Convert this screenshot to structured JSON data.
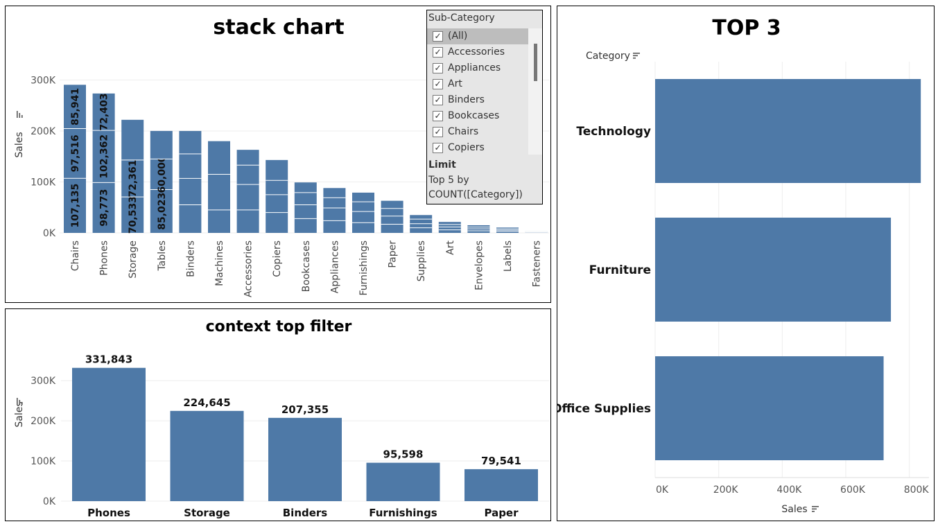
{
  "panels": {
    "stack": {
      "title": "stack chart"
    },
    "context": {
      "title": "context top filter"
    },
    "top3": {
      "title": "TOP 3"
    }
  },
  "filter": {
    "title": "Sub-Category",
    "items": [
      {
        "label": "(All)",
        "checked": true,
        "selected": true
      },
      {
        "label": "Accessories",
        "checked": true
      },
      {
        "label": "Appliances",
        "checked": true
      },
      {
        "label": "Art",
        "checked": true
      },
      {
        "label": "Binders",
        "checked": true
      },
      {
        "label": "Bookcases",
        "checked": true
      },
      {
        "label": "Chairs",
        "checked": true
      },
      {
        "label": "Copiers",
        "checked": true
      }
    ],
    "limit_title": "Limit",
    "limit_line1": "Top 5 by",
    "limit_line2": "COUNT([Category])"
  },
  "colors": {
    "bar": "#4e79a7",
    "segment_line": "#ffffff",
    "grid": "#eeeeee"
  },
  "chart_data": [
    {
      "type": "bar",
      "stacked": true,
      "title": "stack chart",
      "ylabel": "Sales",
      "ylim": [
        0,
        340000
      ],
      "yticks": [
        0,
        100000,
        200000,
        300000
      ],
      "ytick_labels": [
        "0K",
        "100K",
        "200K",
        "300K"
      ],
      "categories": [
        "Chairs",
        "Phones",
        "Storage",
        "Tables",
        "Binders",
        "Machines",
        "Accessories",
        "Copiers",
        "Bookcases",
        "Appliances",
        "Furnishings",
        "Paper",
        "Supplies",
        "Art",
        "Envelopes",
        "Labels",
        "Fasteners"
      ],
      "segments": [
        [
          107135,
          97516,
          85941
        ],
        [
          98773,
          102362,
          72403
        ],
        [
          70533,
          72361,
          79000
        ],
        [
          85023,
          60000,
          55000
        ],
        [
          55000,
          52000,
          48000,
          45000
        ],
        [
          45000,
          70000,
          65000
        ],
        [
          45000,
          50000,
          38000,
          30000
        ],
        [
          40000,
          35000,
          28000,
          40000
        ],
        [
          28000,
          27000,
          24000,
          20000
        ],
        [
          24000,
          25000,
          20000,
          19000
        ],
        [
          20000,
          22000,
          19000,
          18000
        ],
        [
          17000,
          16000,
          15000,
          15000
        ],
        [
          10000,
          8000,
          9000,
          8000
        ],
        [
          6000,
          5500,
          5000,
          5000
        ],
        [
          4000,
          4000,
          3500,
          3500
        ],
        [
          3000,
          2500,
          2500,
          2500
        ],
        [
          1000,
          1000,
          800,
          700
        ]
      ],
      "labeled_bars": [
        0,
        1,
        2,
        3
      ]
    },
    {
      "type": "bar",
      "title": "context top filter",
      "ylabel": "Sales",
      "ylim": [
        0,
        340000
      ],
      "yticks": [
        0,
        100000,
        200000,
        300000
      ],
      "ytick_labels": [
        "0K",
        "100K",
        "200K",
        "300K"
      ],
      "categories": [
        "Phones",
        "Storage",
        "Binders",
        "Furnishings",
        "Paper"
      ],
      "values": [
        331843,
        224645,
        207355,
        95598,
        79541
      ],
      "value_labels": [
        "331,843",
        "224,645",
        "207,355",
        "95,598",
        "79,541"
      ]
    },
    {
      "type": "bar",
      "orientation": "horizontal",
      "title": "TOP 3",
      "ylabel": "Category",
      "xlabel": "Sales",
      "xlim": [
        0,
        840000
      ],
      "xticks": [
        0,
        200000,
        400000,
        600000,
        800000
      ],
      "xtick_labels": [
        "0K",
        "200K",
        "400K",
        "600K",
        "800K"
      ],
      "categories": [
        "Technology",
        "Furniture",
        "Office Supplies"
      ],
      "values": [
        836000,
        742000,
        719000
      ]
    }
  ]
}
